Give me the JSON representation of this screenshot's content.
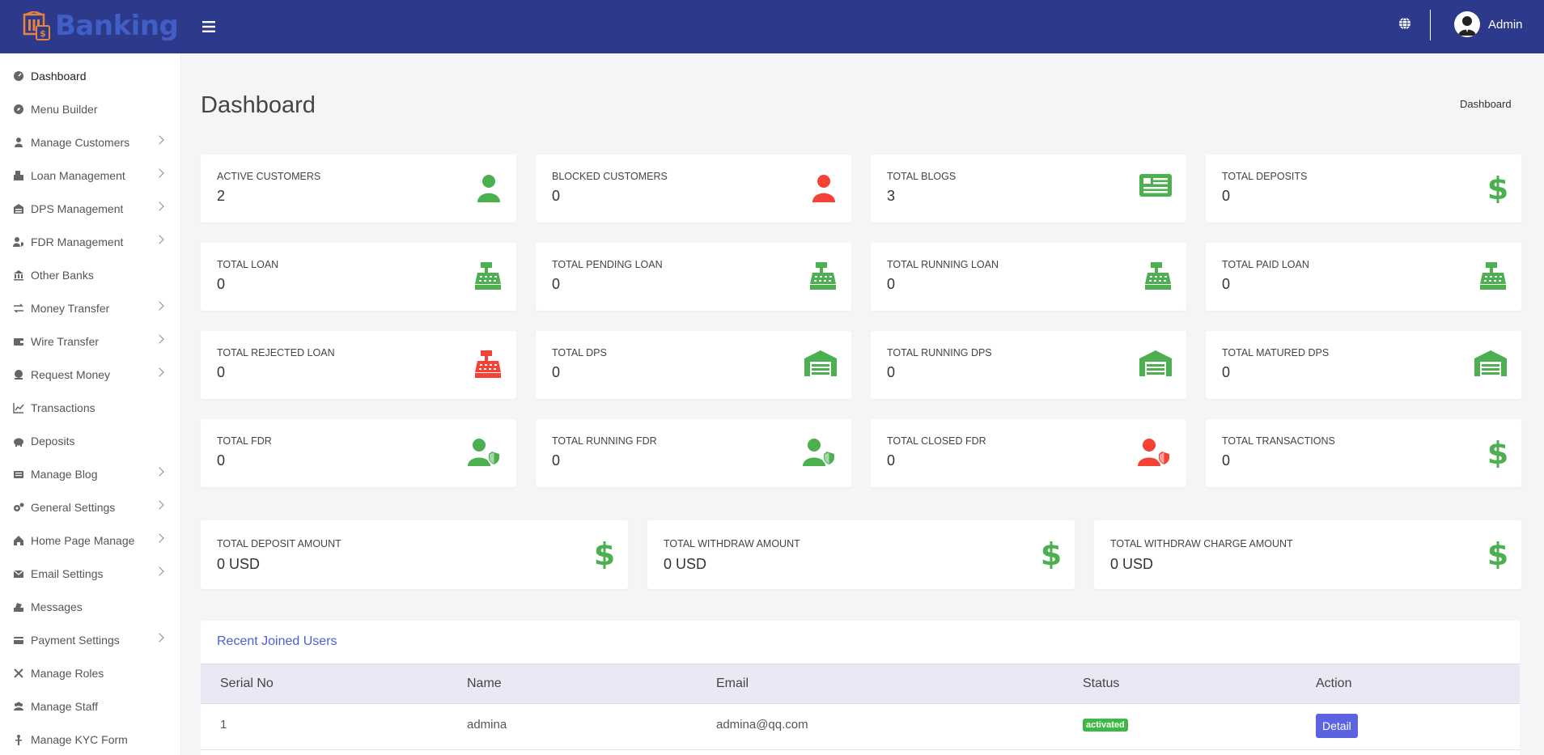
{
  "header": {
    "logo_text": "Banking",
    "admin_name": "Admin"
  },
  "sidebar": {
    "items": [
      {
        "label": "Dashboard",
        "icon": "dashboard-icon",
        "chevron": false
      },
      {
        "label": "Menu Builder",
        "icon": "compass-icon",
        "chevron": false
      },
      {
        "label": "Manage Customers",
        "icon": "user-icon",
        "chevron": true
      },
      {
        "label": "Loan Management",
        "icon": "loan-icon",
        "chevron": true
      },
      {
        "label": "DPS Management",
        "icon": "dps-icon",
        "chevron": true
      },
      {
        "label": "FDR Management",
        "icon": "fdr-icon",
        "chevron": true
      },
      {
        "label": "Other Banks",
        "icon": "bank-icon",
        "chevron": false
      },
      {
        "label": "Money Transfer",
        "icon": "transfer-icon",
        "chevron": true
      },
      {
        "label": "Wire Transfer",
        "icon": "wallet-icon",
        "chevron": true
      },
      {
        "label": "Request Money",
        "icon": "request-icon",
        "chevron": true
      },
      {
        "label": "Transactions",
        "icon": "chart-icon",
        "chevron": false
      },
      {
        "label": "Deposits",
        "icon": "piggy-bank-icon",
        "chevron": false
      },
      {
        "label": "Manage Blog",
        "icon": "blog-icon",
        "chevron": true
      },
      {
        "label": "General Settings",
        "icon": "gears-icon",
        "chevron": true
      },
      {
        "label": "Home Page Manage",
        "icon": "home-icon",
        "chevron": true
      },
      {
        "label": "Email Settings",
        "icon": "envelope-icon",
        "chevron": true
      },
      {
        "label": "Messages",
        "icon": "message-icon",
        "chevron": false
      },
      {
        "label": "Payment Settings",
        "icon": "payment-icon",
        "chevron": true
      },
      {
        "label": "Manage Roles",
        "icon": "roles-icon",
        "chevron": false
      },
      {
        "label": "Manage Staff",
        "icon": "staff-icon",
        "chevron": false
      },
      {
        "label": "Manage KYC Form",
        "icon": "kyc-icon",
        "chevron": false
      }
    ]
  },
  "page": {
    "title": "Dashboard",
    "breadcrumb": "Dashboard"
  },
  "colors": {
    "green": "#4caf50",
    "red": "#f44336",
    "accent": "#4a5fd6",
    "topbar": "#2d3a8c"
  },
  "stats": [
    {
      "label": "Active Customers",
      "value": "2",
      "icon": "user-icon",
      "color": "green"
    },
    {
      "label": "Blocked Customers",
      "value": "0",
      "icon": "user-icon",
      "color": "red"
    },
    {
      "label": "Total Blogs",
      "value": "3",
      "icon": "newspaper-icon",
      "color": "green"
    },
    {
      "label": "Total Deposits",
      "value": "0",
      "icon": "dollar-icon",
      "color": "green"
    },
    {
      "label": "Total Loan",
      "value": "0",
      "icon": "cash-register-icon",
      "color": "green"
    },
    {
      "label": "Total Pending Loan",
      "value": "0",
      "icon": "cash-register-icon",
      "color": "green"
    },
    {
      "label": "Total Running Loan",
      "value": "0",
      "icon": "cash-register-icon",
      "color": "green"
    },
    {
      "label": "Total Paid Loan",
      "value": "0",
      "icon": "cash-register-icon",
      "color": "green"
    },
    {
      "label": "Total Rejected Loan",
      "value": "0",
      "icon": "cash-register-icon",
      "color": "red"
    },
    {
      "label": "Total DPS",
      "value": "0",
      "icon": "warehouse-icon",
      "color": "green"
    },
    {
      "label": "Total Running DPS",
      "value": "0",
      "icon": "warehouse-icon",
      "color": "green"
    },
    {
      "label": "Total Matured DPS",
      "value": "0",
      "icon": "warehouse-icon",
      "color": "green"
    },
    {
      "label": "Total FDR",
      "value": "0",
      "icon": "user-shield-icon",
      "color": "green"
    },
    {
      "label": "Total Running FDR",
      "value": "0",
      "icon": "user-shield-icon",
      "color": "green"
    },
    {
      "label": "Total Closed FDR",
      "value": "0",
      "icon": "user-shield-icon",
      "color": "red"
    },
    {
      "label": "Total Transactions",
      "value": "0",
      "icon": "dollar-icon",
      "color": "green"
    }
  ],
  "amounts": [
    {
      "label": "Total Deposit Amount",
      "value": "0 USD",
      "icon": "dollar-icon"
    },
    {
      "label": "Total Withdraw Amount",
      "value": "0 USD",
      "icon": "dollar-icon"
    },
    {
      "label": "Total Withdraw Charge Amount",
      "value": "0 USD",
      "icon": "dollar-icon"
    }
  ],
  "recent_users": {
    "title": "Recent Joined Users",
    "columns": [
      "Serial No",
      "Name",
      "Email",
      "Status",
      "Action"
    ],
    "rows": [
      {
        "serial": "1",
        "name": "admina",
        "email": "admina@qq.com",
        "status": "activated",
        "action": "Detail"
      }
    ]
  }
}
